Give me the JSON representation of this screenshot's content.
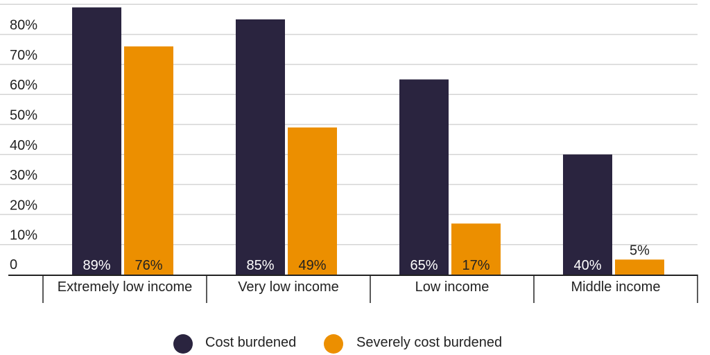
{
  "chart_data": {
    "type": "bar",
    "title": "",
    "xlabel": "",
    "ylabel": "",
    "ylim": [
      0,
      90
    ],
    "grid": true,
    "y_ticks": [
      {
        "value": 0,
        "label": "0"
      },
      {
        "value": 10,
        "label": "10%"
      },
      {
        "value": 20,
        "label": "20%"
      },
      {
        "value": 30,
        "label": "30%"
      },
      {
        "value": 40,
        "label": "40%"
      },
      {
        "value": 50,
        "label": "50%"
      },
      {
        "value": 60,
        "label": "60%"
      },
      {
        "value": 70,
        "label": "70%"
      },
      {
        "value": 80,
        "label": "80%"
      }
    ],
    "categories": [
      "Extremely low income",
      "Very low income",
      "Low income",
      "Middle income"
    ],
    "series": [
      {
        "name": "Cost burdened",
        "color": "#2a243f",
        "values": [
          89,
          85,
          65,
          40
        ],
        "labels": [
          "89%",
          "85%",
          "65%",
          "40%"
        ]
      },
      {
        "name": "Severely cost burdened",
        "color": "#ec8f00",
        "values": [
          76,
          49,
          17,
          5
        ],
        "labels": [
          "76%",
          "49%",
          "17%",
          "5%"
        ]
      }
    ],
    "legend_position": "bottom-center"
  }
}
